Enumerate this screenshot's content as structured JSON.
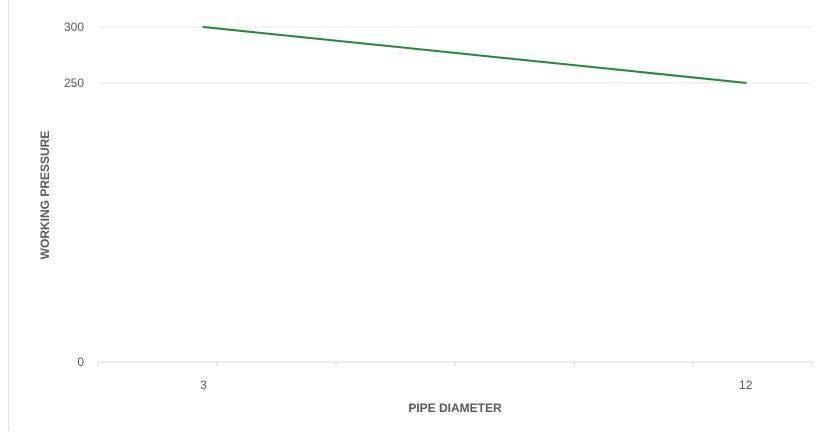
{
  "chart_data": {
    "type": "line",
    "title": "",
    "xlabel": "PIPE DIAMETER",
    "ylabel": "WORKING PRESSURE",
    "x": [
      3,
      12
    ],
    "series": [
      {
        "values": [
          300,
          250
        ]
      }
    ],
    "xlim": [
      1.25,
      13.1
    ],
    "ylim": [
      0,
      300
    ],
    "x_tick_labels": [
      "3",
      "12"
    ],
    "y_tick_labels": [
      "0",
      "250",
      "300"
    ],
    "y_gridlines_at": [
      250,
      300
    ],
    "grid": true,
    "legend": "none",
    "colors": {
      "line": "#1e8a3c",
      "grid": "#e6e6e6",
      "axis": "#d9d9d9",
      "text": "#595959"
    }
  }
}
